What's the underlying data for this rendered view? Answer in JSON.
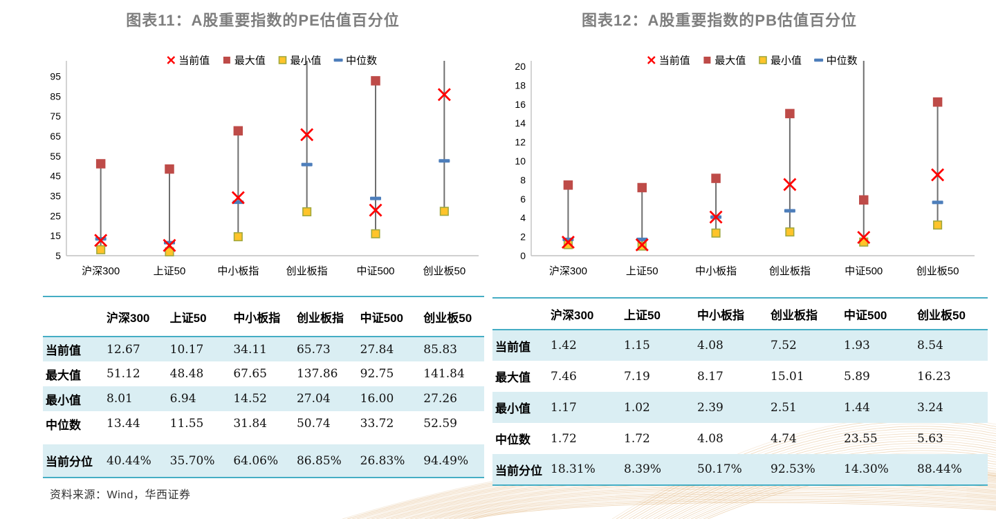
{
  "page": {
    "source_note": "资料来源：Wind，华西证券"
  },
  "colors": {
    "title_gray": "#7e7e7e",
    "current_red": "#ff0000",
    "max_red": "#be4b48",
    "min_yellow_fill": "#ffc42a",
    "min_yellow_border": "#a0a83e",
    "median_blue": "#4d7ebb",
    "hilo_line_gray": "#6e6e6e",
    "axis_gray": "#c0c0c0",
    "table_stripe_blue": "#daeef3",
    "table_border_teal": "#44adc4",
    "decor_tan": "#d69c52",
    "decor_tan_light": "#e8c9a0"
  },
  "chart_data": [
    {
      "type": "scatter",
      "title": "图表11：A股重要指数的PE估值百分位",
      "categories": [
        "沪深300",
        "上证50",
        "中小板指",
        "创业板指",
        "中证500",
        "创业板50"
      ],
      "series": [
        {
          "name": "当前值",
          "marker": "x",
          "color": "#ff0000",
          "values": [
            12.67,
            10.17,
            34.11,
            65.73,
            27.84,
            85.83
          ]
        },
        {
          "name": "最大值",
          "marker": "square",
          "color": "#be4b48",
          "values": [
            51.12,
            48.48,
            67.65,
            137.86,
            92.75,
            141.84
          ]
        },
        {
          "name": "最小值",
          "marker": "square",
          "color": "#ffc42a",
          "border": "#a0a83e",
          "values": [
            8.01,
            6.94,
            14.52,
            27.04,
            16.0,
            27.26
          ]
        },
        {
          "name": "中位数",
          "marker": "dash",
          "color": "#4d7ebb",
          "values": [
            13.44,
            11.55,
            31.84,
            50.74,
            33.72,
            52.59
          ]
        }
      ],
      "ylim": [
        5,
        100
      ],
      "y_ticks": [
        5,
        15,
        25,
        35,
        45,
        55,
        65,
        75,
        85,
        95
      ],
      "legend_position": "top",
      "grid": false,
      "hi_lo_lines": true
    },
    {
      "type": "scatter",
      "title": "图表12：A股重要指数的PB估值百分位",
      "categories": [
        "沪深300",
        "上证50",
        "中小板指",
        "创业板指",
        "中证500",
        "创业板50"
      ],
      "series": [
        {
          "name": "当前值",
          "marker": "x",
          "color": "#ff0000",
          "values": [
            1.42,
            1.15,
            4.08,
            7.52,
            1.93,
            8.54
          ]
        },
        {
          "name": "最大值",
          "marker": "square",
          "color": "#be4b48",
          "values": [
            7.46,
            7.19,
            8.17,
            15.01,
            5.89,
            16.23
          ]
        },
        {
          "name": "最小值",
          "marker": "square",
          "color": "#ffc42a",
          "border": "#a0a83e",
          "values": [
            1.17,
            1.02,
            2.39,
            2.51,
            1.44,
            3.24
          ]
        },
        {
          "name": "中位数",
          "marker": "dash",
          "color": "#4d7ebb",
          "values": [
            1.72,
            1.72,
            4.08,
            4.74,
            23.55,
            5.63
          ]
        }
      ],
      "ylim": [
        0,
        20
      ],
      "y_ticks": [
        0,
        2,
        4,
        6,
        8,
        10,
        12,
        14,
        16,
        18,
        20
      ],
      "legend_position": "top",
      "grid": false,
      "hi_lo_lines": true
    }
  ],
  "tables": [
    {
      "columns": [
        "沪深300",
        "上证50",
        "中小板指",
        "创业板指",
        "中证500",
        "创业板50"
      ],
      "rows": [
        {
          "label": "当前值",
          "values": [
            "12.67",
            "10.17",
            "34.11",
            "65.73",
            "27.84",
            "85.83"
          ]
        },
        {
          "label": "最大值",
          "values": [
            "51.12",
            "48.48",
            "67.65",
            "137.86",
            "92.75",
            "141.84"
          ]
        },
        {
          "label": "最小值",
          "values": [
            "8.01",
            "6.94",
            "14.52",
            "27.04",
            "16.00",
            "27.26"
          ]
        },
        {
          "label": "中位数",
          "values": [
            "13.44",
            "11.55",
            "31.84",
            "50.74",
            "33.72",
            "52.59"
          ]
        },
        {
          "label": "当前分位",
          "values": [
            "40.44%",
            "35.70%",
            "64.06%",
            "86.85%",
            "26.83%",
            "94.49%"
          ]
        }
      ]
    },
    {
      "columns": [
        "沪深300",
        "上证50",
        "中小板指",
        "创业板指",
        "中证500",
        "创业板50"
      ],
      "rows": [
        {
          "label": "当前值",
          "values": [
            "1.42",
            "1.15",
            "4.08",
            "7.52",
            "1.93",
            "8.54"
          ]
        },
        {
          "label": "最大值",
          "values": [
            "7.46",
            "7.19",
            "8.17",
            "15.01",
            "5.89",
            "16.23"
          ]
        },
        {
          "label": "最小值",
          "values": [
            "1.17",
            "1.02",
            "2.39",
            "2.51",
            "1.44",
            "3.24"
          ]
        },
        {
          "label": "中位数",
          "values": [
            "1.72",
            "1.72",
            "4.08",
            "4.74",
            "23.55",
            "5.63"
          ]
        },
        {
          "label": "当前分位",
          "values": [
            "18.31%",
            "8.39%",
            "50.17%",
            "92.53%",
            "14.30%",
            "88.44%"
          ]
        }
      ]
    }
  ]
}
